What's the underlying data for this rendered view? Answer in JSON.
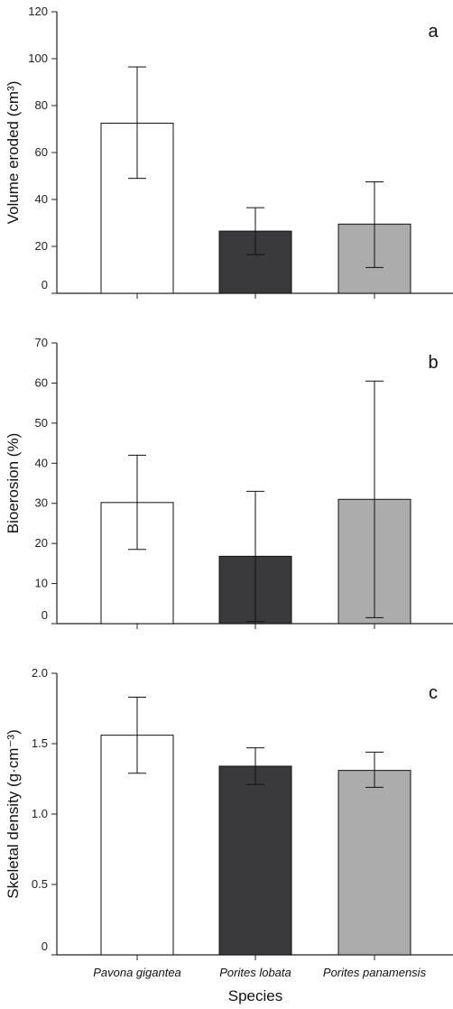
{
  "chart_data": [
    {
      "type": "bar",
      "panel_label": "a",
      "ylabel": "Volume eroded (cm³)",
      "ylim": [
        0,
        120
      ],
      "yticks": [
        "0",
        "20",
        "40",
        "60",
        "80",
        "100",
        "120"
      ],
      "categories": [
        "Pavona gigantea",
        "Porites lobata",
        "Porites panamensis"
      ],
      "values": [
        72.5,
        26.5,
        29.5
      ],
      "error_low": [
        49,
        16.5,
        11
      ],
      "error_high": [
        96.5,
        36.5,
        47.5
      ],
      "colors": [
        "#ffffff",
        "#3a3a3c",
        "#acacac"
      ]
    },
    {
      "type": "bar",
      "panel_label": "b",
      "ylabel": "Bioerosion (%)",
      "ylim": [
        0,
        70
      ],
      "yticks": [
        "0",
        "10",
        "20",
        "30",
        "40",
        "50",
        "60",
        "70"
      ],
      "categories": [
        "Pavona gigantea",
        "Porites lobata",
        "Porites panamensis"
      ],
      "values": [
        30.2,
        16.8,
        31
      ],
      "error_low": [
        18.5,
        0.5,
        1.5
      ],
      "error_high": [
        42,
        33,
        60.5
      ],
      "colors": [
        "#ffffff",
        "#3a3a3c",
        "#acacac"
      ]
    },
    {
      "type": "bar",
      "panel_label": "c",
      "ylabel": "Skeletal density (g·cm⁻³)",
      "ylim": [
        0,
        2.0
      ],
      "yticks": [
        "0",
        "0.5",
        "1.0",
        "1.5",
        "2.0"
      ],
      "categories": [
        "Pavona gigantea",
        "Porites lobata",
        "Porites panamensis"
      ],
      "values": [
        1.56,
        1.34,
        1.31
      ],
      "error_low": [
        1.29,
        1.21,
        1.19
      ],
      "error_high": [
        1.83,
        1.47,
        1.44
      ],
      "colors": [
        "#ffffff",
        "#3a3a3c",
        "#acacac"
      ],
      "xlabel": "Species"
    }
  ]
}
